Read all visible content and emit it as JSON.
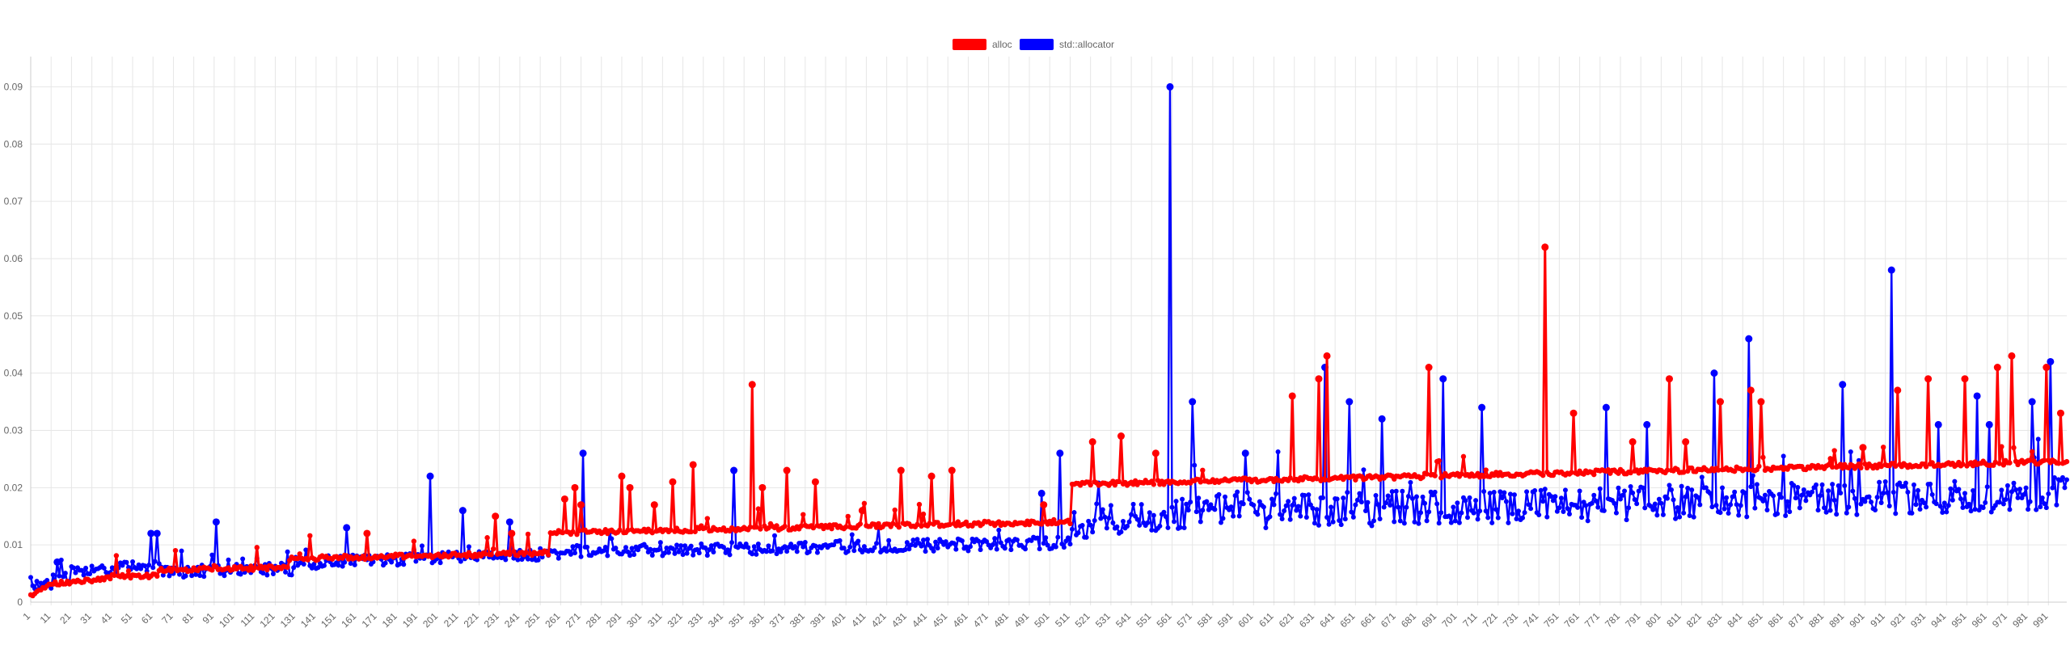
{
  "chart_data": {
    "type": "line",
    "title": "",
    "xlabel": "",
    "ylabel": "",
    "legend_position": "top-center",
    "grid": true,
    "x": {
      "start": 1,
      "end": 1000,
      "tick_step": 10,
      "tick_labels": [
        "1",
        "11",
        "21",
        "31",
        "41",
        "51",
        "61",
        "71",
        "81",
        "91",
        "101",
        "111",
        "121",
        "131",
        "141",
        "151",
        "161",
        "171",
        "181",
        "191",
        "201",
        "211",
        "221",
        "231",
        "241",
        "251",
        "261",
        "271",
        "281",
        "291",
        "301",
        "311",
        "321",
        "331",
        "341",
        "351",
        "361",
        "371",
        "381",
        "391",
        "401",
        "411",
        "421",
        "431",
        "441",
        "451",
        "461",
        "471",
        "481",
        "491",
        "501",
        "511",
        "521",
        "531",
        "541",
        "551",
        "561",
        "571",
        "581",
        "591",
        "601",
        "611",
        "621",
        "631",
        "641",
        "651",
        "661",
        "671",
        "681",
        "691",
        "701",
        "711",
        "721",
        "731",
        "741",
        "751",
        "761",
        "771",
        "781",
        "791",
        "801",
        "811",
        "821",
        "831",
        "841",
        "851",
        "861",
        "871",
        "881",
        "891",
        "901",
        "911",
        "921",
        "931",
        "941",
        "951",
        "961",
        "971",
        "981",
        "991"
      ]
    },
    "y": {
      "min": 0,
      "max": 0.095,
      "tick_labels": [
        "0",
        "0.01",
        "0.02",
        "0.03",
        "0.04",
        "0.05",
        "0.06",
        "0.07",
        "0.08",
        "0.09"
      ]
    },
    "series": [
      {
        "name": "alloc",
        "color": "#ff0000",
        "baseline_segments": [
          {
            "from": 1,
            "to": 10,
            "y0": 0.001,
            "y1": 0.003
          },
          {
            "from": 10,
            "to": 40,
            "y0": 0.003,
            "y1": 0.004
          },
          {
            "from": 40,
            "to": 63,
            "y0": 0.0045,
            "y1": 0.0045
          },
          {
            "from": 64,
            "to": 127,
            "y0": 0.0055,
            "y1": 0.006
          },
          {
            "from": 128,
            "to": 255,
            "y0": 0.0075,
            "y1": 0.0085
          },
          {
            "from": 256,
            "to": 511,
            "y0": 0.012,
            "y1": 0.014
          },
          {
            "from": 512,
            "to": 1000,
            "y0": 0.0205,
            "y1": 0.0245
          }
        ],
        "spikes": [
          {
            "x": 166,
            "y": 0.012
          },
          {
            "x": 229,
            "y": 0.015
          },
          {
            "x": 237,
            "y": 0.012
          },
          {
            "x": 263,
            "y": 0.018
          },
          {
            "x": 268,
            "y": 0.02
          },
          {
            "x": 271,
            "y": 0.017
          },
          {
            "x": 291,
            "y": 0.022
          },
          {
            "x": 295,
            "y": 0.02
          },
          {
            "x": 307,
            "y": 0.017
          },
          {
            "x": 316,
            "y": 0.021
          },
          {
            "x": 326,
            "y": 0.024
          },
          {
            "x": 355,
            "y": 0.038
          },
          {
            "x": 360,
            "y": 0.02
          },
          {
            "x": 372,
            "y": 0.023
          },
          {
            "x": 386,
            "y": 0.021
          },
          {
            "x": 409,
            "y": 0.016
          },
          {
            "x": 428,
            "y": 0.023
          },
          {
            "x": 443,
            "y": 0.022
          },
          {
            "x": 453,
            "y": 0.023
          },
          {
            "x": 498,
            "y": 0.017
          },
          {
            "x": 522,
            "y": 0.028
          },
          {
            "x": 536,
            "y": 0.029
          },
          {
            "x": 553,
            "y": 0.026
          },
          {
            "x": 620,
            "y": 0.036
          },
          {
            "x": 633,
            "y": 0.039
          },
          {
            "x": 637,
            "y": 0.043
          },
          {
            "x": 687,
            "y": 0.041
          },
          {
            "x": 744,
            "y": 0.062
          },
          {
            "x": 758,
            "y": 0.033
          },
          {
            "x": 787,
            "y": 0.028
          },
          {
            "x": 805,
            "y": 0.039
          },
          {
            "x": 813,
            "y": 0.028
          },
          {
            "x": 830,
            "y": 0.035
          },
          {
            "x": 845,
            "y": 0.037
          },
          {
            "x": 850,
            "y": 0.035
          },
          {
            "x": 900,
            "y": 0.027
          },
          {
            "x": 917,
            "y": 0.037
          },
          {
            "x": 932,
            "y": 0.039
          },
          {
            "x": 950,
            "y": 0.039
          },
          {
            "x": 966,
            "y": 0.041
          },
          {
            "x": 973,
            "y": 0.043
          },
          {
            "x": 990,
            "y": 0.041
          },
          {
            "x": 997,
            "y": 0.033
          }
        ]
      },
      {
        "name": "std::allocator",
        "color": "#0000ff",
        "baseline_segments": [
          {
            "from": 1,
            "to": 20,
            "y0": 0.002,
            "y1": 0.004
          },
          {
            "from": 20,
            "to": 64,
            "y0": 0.005,
            "y1": 0.006
          },
          {
            "from": 64,
            "to": 130,
            "y0": 0.005,
            "y1": 0.0055
          },
          {
            "from": 130,
            "to": 260,
            "y0": 0.0065,
            "y1": 0.008
          },
          {
            "from": 260,
            "to": 511,
            "y0": 0.0085,
            "y1": 0.01
          },
          {
            "from": 512,
            "to": 600,
            "y0": 0.013,
            "y1": 0.016
          },
          {
            "from": 600,
            "to": 1000,
            "y0": 0.015,
            "y1": 0.018
          }
        ],
        "spikes": [
          {
            "x": 14,
            "y": 0.007
          },
          {
            "x": 60,
            "y": 0.012
          },
          {
            "x": 63,
            "y": 0.012
          },
          {
            "x": 92,
            "y": 0.014
          },
          {
            "x": 156,
            "y": 0.013
          },
          {
            "x": 197,
            "y": 0.022
          },
          {
            "x": 213,
            "y": 0.016
          },
          {
            "x": 236,
            "y": 0.014
          },
          {
            "x": 272,
            "y": 0.026
          },
          {
            "x": 346,
            "y": 0.023
          },
          {
            "x": 497,
            "y": 0.019
          },
          {
            "x": 506,
            "y": 0.026
          },
          {
            "x": 560,
            "y": 0.09
          },
          {
            "x": 571,
            "y": 0.035
          },
          {
            "x": 597,
            "y": 0.026
          },
          {
            "x": 636,
            "y": 0.041
          },
          {
            "x": 648,
            "y": 0.035
          },
          {
            "x": 664,
            "y": 0.032
          },
          {
            "x": 694,
            "y": 0.039
          },
          {
            "x": 713,
            "y": 0.034
          },
          {
            "x": 774,
            "y": 0.034
          },
          {
            "x": 794,
            "y": 0.031
          },
          {
            "x": 827,
            "y": 0.04
          },
          {
            "x": 844,
            "y": 0.046
          },
          {
            "x": 890,
            "y": 0.038
          },
          {
            "x": 914,
            "y": 0.058
          },
          {
            "x": 937,
            "y": 0.031
          },
          {
            "x": 956,
            "y": 0.036
          },
          {
            "x": 962,
            "y": 0.031
          },
          {
            "x": 983,
            "y": 0.035
          },
          {
            "x": 992,
            "y": 0.042
          }
        ]
      }
    ]
  }
}
